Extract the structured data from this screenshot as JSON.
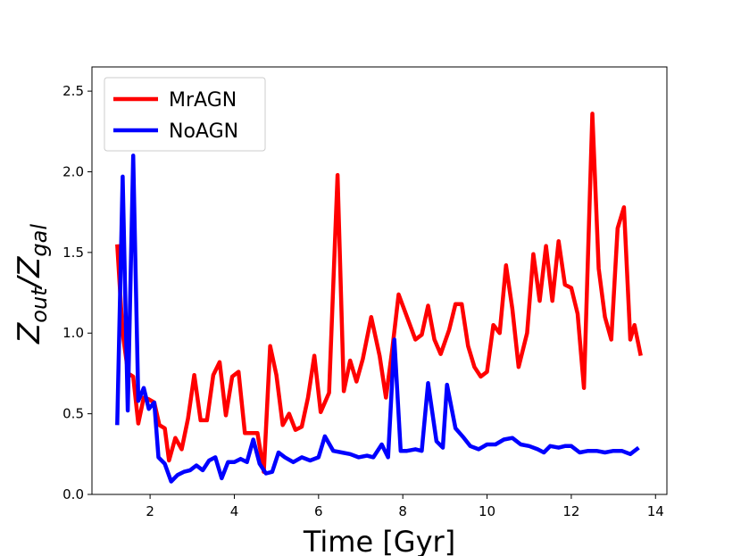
{
  "chart_data": {
    "type": "line",
    "xlabel": "Time [Gyr]",
    "ylabel": [
      "Z",
      "out",
      "/Z",
      "gal"
    ],
    "xlim": [
      0.62,
      14.27
    ],
    "xticks": [
      2,
      4,
      6,
      8,
      10,
      12,
      14
    ],
    "ylim": [
      0,
      2.65
    ],
    "yticks": [
      {
        "value": 0,
        "label": "0.0"
      },
      0.5,
      {
        "value": 1,
        "label": "1.0"
      },
      1.5,
      {
        "value": 2,
        "label": "2.0"
      },
      2.5
    ],
    "legend": "upper left",
    "series": [
      {
        "name": "MrAGN",
        "color": "#ff0000",
        "x": [
          1.22,
          1.35,
          1.48,
          1.6,
          1.72,
          1.85,
          1.97,
          2.1,
          2.22,
          2.35,
          2.45,
          2.6,
          2.75,
          2.9,
          3.05,
          3.2,
          3.35,
          3.5,
          3.65,
          3.8,
          3.95,
          4.1,
          4.25,
          4.4,
          4.55,
          4.7,
          4.85,
          5.0,
          5.15,
          5.3,
          5.45,
          5.6,
          5.75,
          5.9,
          6.05,
          6.25,
          6.45,
          6.6,
          6.75,
          6.9,
          7.05,
          7.25,
          7.45,
          7.6,
          7.75,
          7.9,
          8.1,
          8.3,
          8.45,
          8.6,
          8.75,
          8.9,
          9.1,
          9.25,
          9.4,
          9.55,
          9.7,
          9.85,
          10.0,
          10.15,
          10.3,
          10.45,
          10.6,
          10.75,
          10.95,
          11.1,
          11.25,
          11.4,
          11.55,
          11.7,
          11.85,
          12.0,
          12.15,
          12.3,
          12.5,
          12.65,
          12.8,
          12.95,
          13.1,
          13.25,
          13.4,
          13.5,
          13.65
        ],
        "values": [
          1.55,
          1.0,
          0.75,
          0.73,
          0.44,
          0.6,
          0.59,
          0.57,
          0.43,
          0.41,
          0.21,
          0.35,
          0.28,
          0.47,
          0.74,
          0.46,
          0.46,
          0.74,
          0.82,
          0.49,
          0.73,
          0.76,
          0.38,
          0.38,
          0.38,
          0.14,
          0.92,
          0.74,
          0.43,
          0.5,
          0.4,
          0.42,
          0.6,
          0.86,
          0.51,
          0.63,
          1.98,
          0.64,
          0.83,
          0.7,
          0.84,
          1.1,
          0.86,
          0.6,
          0.9,
          1.24,
          1.1,
          0.96,
          0.99,
          1.17,
          0.96,
          0.87,
          1.02,
          1.18,
          1.18,
          0.92,
          0.79,
          0.73,
          0.76,
          1.05,
          1.0,
          1.42,
          1.15,
          0.79,
          1.0,
          1.49,
          1.2,
          1.54,
          1.2,
          1.57,
          1.3,
          1.28,
          1.12,
          0.66,
          2.36,
          1.4,
          1.1,
          0.96,
          1.65,
          1.78,
          0.96,
          1.05,
          0.86
        ]
      },
      {
        "name": "NoAGN",
        "color": "#0000ff",
        "x": [
          1.22,
          1.35,
          1.47,
          1.6,
          1.72,
          1.85,
          1.97,
          2.1,
          2.2,
          2.35,
          2.5,
          2.65,
          2.8,
          2.95,
          3.1,
          3.25,
          3.4,
          3.55,
          3.7,
          3.85,
          4.0,
          4.15,
          4.3,
          4.45,
          4.6,
          4.75,
          4.9,
          5.05,
          5.2,
          5.4,
          5.6,
          5.8,
          6.0,
          6.15,
          6.35,
          6.55,
          6.75,
          6.95,
          7.15,
          7.3,
          7.5,
          7.65,
          7.8,
          7.95,
          8.1,
          8.3,
          8.45,
          8.6,
          8.8,
          8.95,
          9.05,
          9.25,
          9.45,
          9.6,
          9.8,
          10.0,
          10.2,
          10.4,
          10.6,
          10.8,
          11.0,
          11.2,
          11.35,
          11.5,
          11.7,
          11.85,
          12.0,
          12.2,
          12.4,
          12.6,
          12.8,
          13.0,
          13.2,
          13.4,
          13.6
        ],
        "values": [
          0.43,
          1.97,
          0.52,
          2.1,
          0.58,
          0.66,
          0.53,
          0.57,
          0.23,
          0.19,
          0.08,
          0.12,
          0.14,
          0.15,
          0.18,
          0.15,
          0.21,
          0.23,
          0.1,
          0.2,
          0.2,
          0.22,
          0.2,
          0.34,
          0.19,
          0.13,
          0.14,
          0.26,
          0.23,
          0.2,
          0.23,
          0.21,
          0.23,
          0.36,
          0.27,
          0.26,
          0.25,
          0.23,
          0.24,
          0.23,
          0.31,
          0.23,
          0.96,
          0.27,
          0.27,
          0.28,
          0.27,
          0.69,
          0.33,
          0.29,
          0.68,
          0.41,
          0.35,
          0.3,
          0.28,
          0.31,
          0.31,
          0.34,
          0.35,
          0.31,
          0.3,
          0.28,
          0.26,
          0.3,
          0.29,
          0.3,
          0.3,
          0.26,
          0.27,
          0.27,
          0.26,
          0.27,
          0.27,
          0.25,
          0.29
        ]
      }
    ]
  }
}
